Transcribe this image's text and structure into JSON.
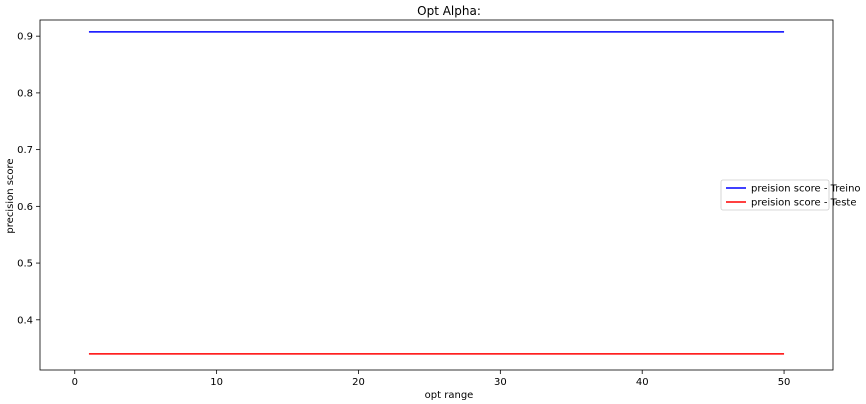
{
  "chart_data": {
    "type": "line",
    "title": "Opt Alpha:",
    "xlabel": "opt range",
    "ylabel": "precision score",
    "xlim": [
      -2.45,
      53.45
    ],
    "ylim": [
      0.3115,
      0.9285
    ],
    "xticks": [
      0,
      10,
      20,
      30,
      40,
      50
    ],
    "yticks": [
      0.4,
      0.5,
      0.6,
      0.7,
      0.8,
      0.9
    ],
    "grid": false,
    "legend_position": "center-right",
    "series": [
      {
        "name": "preision score - Treino",
        "color": "#0000ff",
        "x": [
          1,
          50
        ],
        "y": [
          0.9075,
          0.9075
        ]
      },
      {
        "name": "preision score - Teste",
        "color": "#ff0000",
        "x": [
          1,
          50
        ],
        "y": [
          0.34,
          0.34
        ]
      }
    ]
  }
}
